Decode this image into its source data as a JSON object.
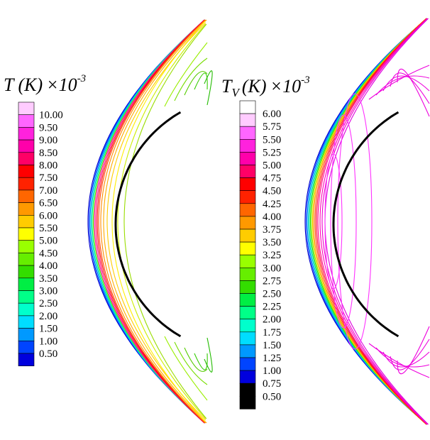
{
  "chart_data": [
    {
      "type": "contour",
      "title": "T (K) ×10-3",
      "title_parts": {
        "symbol": "T",
        "subscript": "",
        "unit": "(K)",
        "times": "×10",
        "exponent": "-3"
      },
      "legend_levels": [
        0.5,
        1.0,
        1.5,
        2.0,
        2.5,
        3.0,
        3.5,
        4.0,
        4.5,
        5.0,
        5.5,
        6.0,
        6.5,
        7.0,
        7.5,
        8.0,
        8.5,
        9.0,
        9.5,
        10.0
      ],
      "legend_labels": [
        "10.00",
        "9.50",
        "9.00",
        "8.50",
        "8.00",
        "7.50",
        "7.00",
        "6.50",
        "6.00",
        "5.50",
        "5.00",
        "4.50",
        "4.00",
        "3.50",
        "3.00",
        "2.50",
        "2.00",
        "1.50",
        "1.00",
        "0.50"
      ],
      "legend_colors": [
        "#0000dd",
        "#0044ff",
        "#0099ff",
        "#00ddff",
        "#00ffcc",
        "#00ff88",
        "#00ee44",
        "#33dd00",
        "#66ee00",
        "#99ff00",
        "#ffff00",
        "#ffcc00",
        "#ff9900",
        "#ff6600",
        "#ff2200",
        "#ff0000",
        "#ff0066",
        "#ff00aa",
        "#ff22dd",
        "#ff66ff",
        "#ffccff",
        "#ffffff"
      ]
    },
    {
      "type": "contour",
      "title": "TV (K) ×10-3",
      "title_parts": {
        "symbol": "T",
        "subscript": "V",
        "unit": "(K)",
        "times": "×10",
        "exponent": "-3"
      },
      "legend_levels": [
        0.5,
        0.75,
        1.0,
        1.25,
        1.5,
        1.75,
        2.0,
        2.25,
        2.5,
        2.75,
        3.0,
        3.25,
        3.5,
        3.75,
        4.0,
        4.25,
        4.5,
        4.75,
        5.0,
        5.25,
        5.5,
        5.75,
        6.0
      ],
      "legend_labels": [
        "6.00",
        "5.75",
        "5.50",
        "5.25",
        "5.00",
        "4.75",
        "4.50",
        "4.25",
        "4.00",
        "3.75",
        "3.50",
        "3.25",
        "3.00",
        "2.75",
        "2.50",
        "2.25",
        "2.00",
        "1.75",
        "1.50",
        "1.25",
        "1.00",
        "0.75",
        "0.50"
      ],
      "legend_colors": [
        "#0000dd",
        "#0044ff",
        "#0099ff",
        "#00ddff",
        "#00ffcc",
        "#00ff88",
        "#00ee44",
        "#33dd00",
        "#66ee00",
        "#99ff00",
        "#ffff00",
        "#ffcc00",
        "#ff9900",
        "#ff6600",
        "#ff2200",
        "#ff0000",
        "#ff0066",
        "#ff00aa",
        "#ff22dd",
        "#ff66ff",
        "#ffccff",
        "#ffffff"
      ]
    }
  ]
}
